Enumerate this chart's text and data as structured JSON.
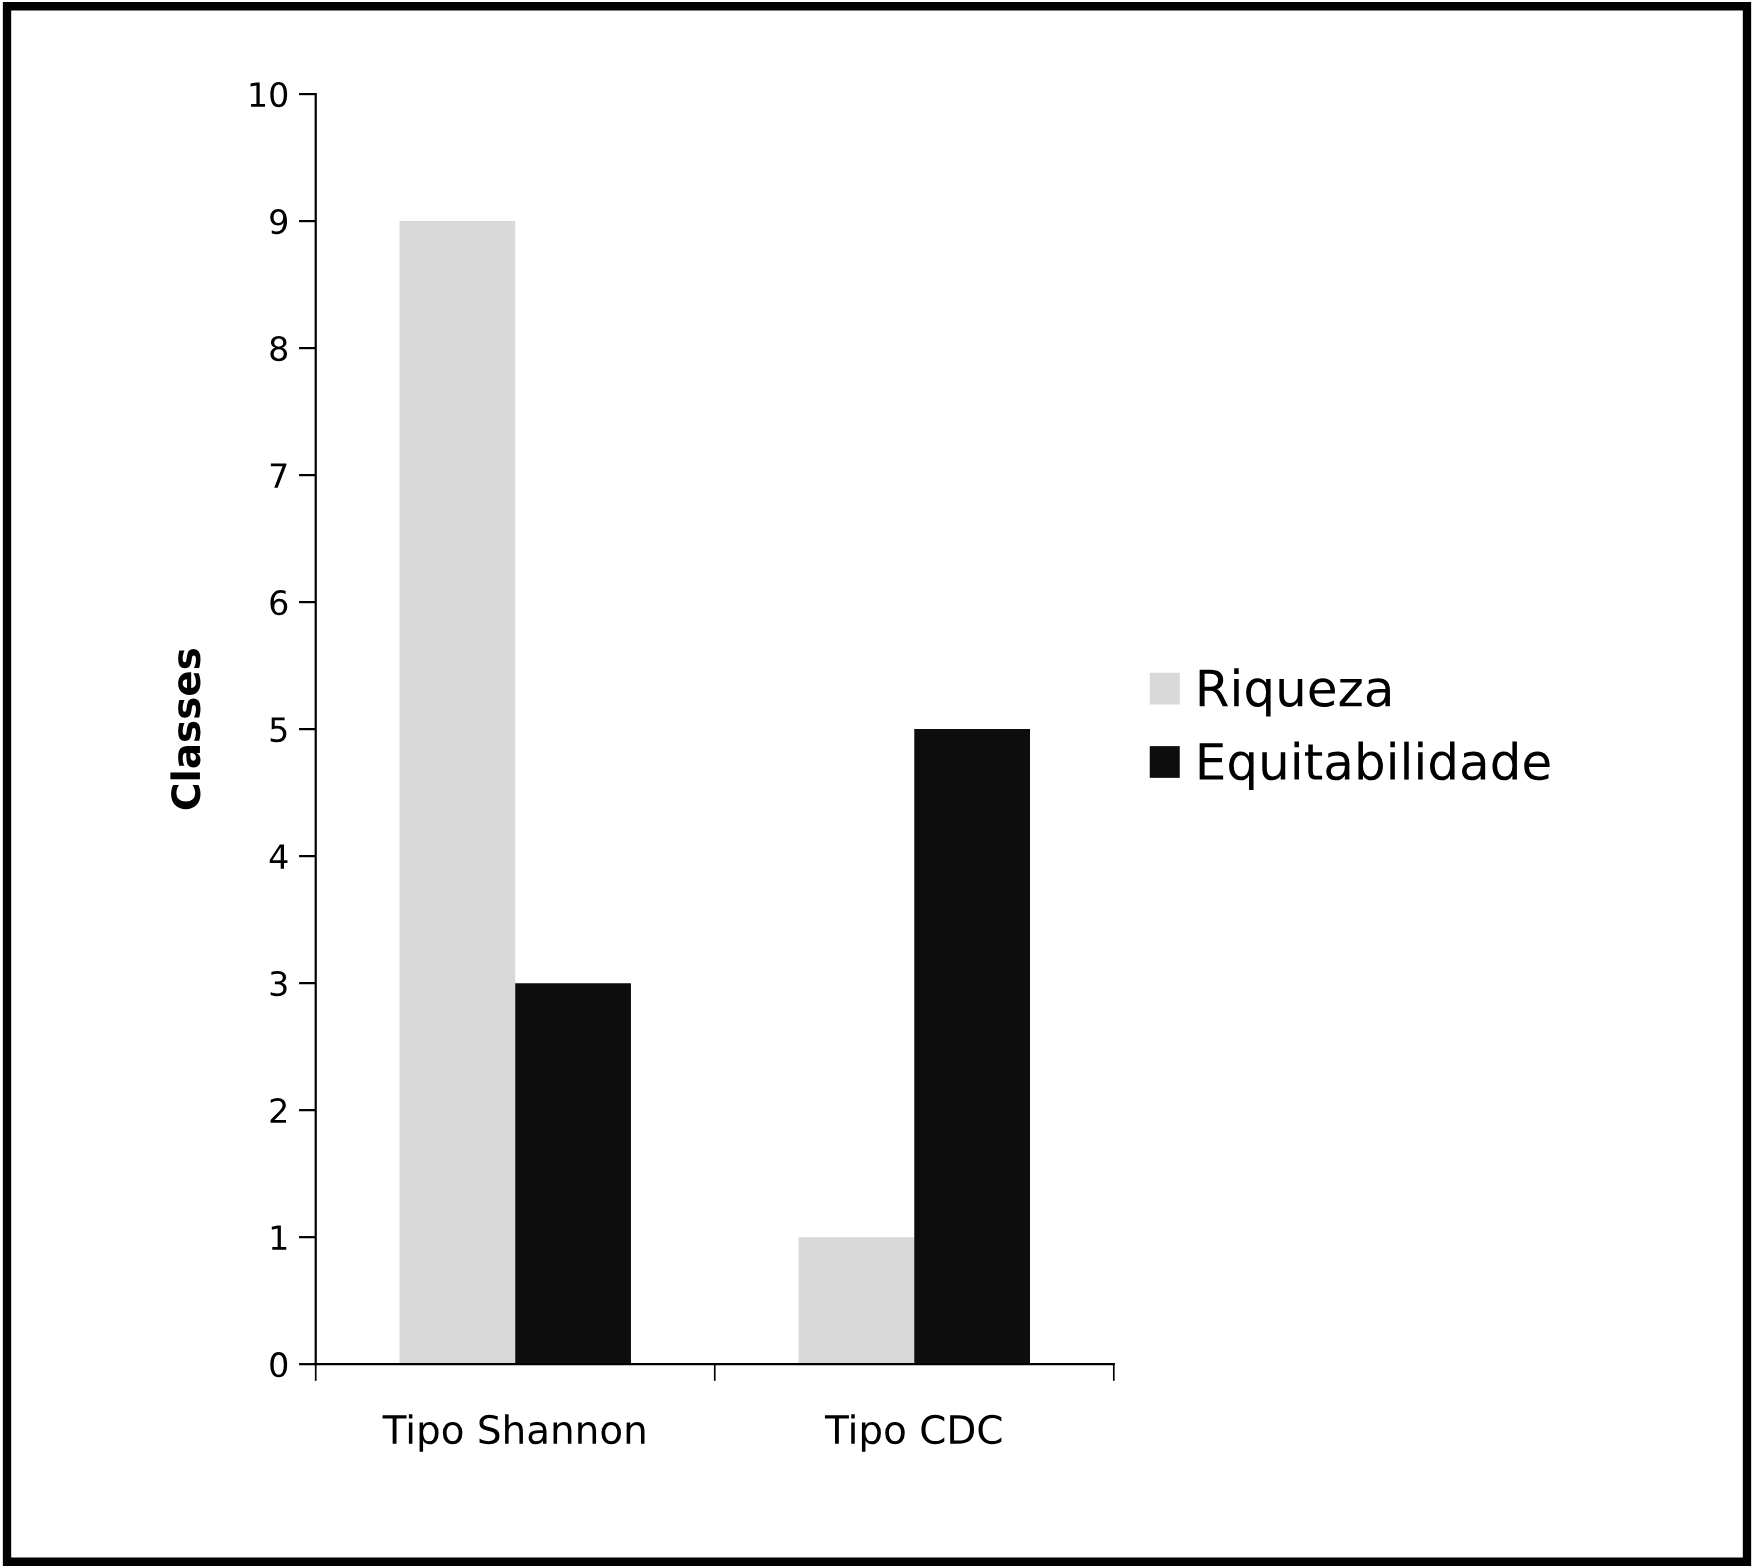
{
  "chart_data": {
    "type": "bar",
    "ylabel": "Classes",
    "categories": [
      "Tipo Shannon",
      "Tipo CDC"
    ],
    "series": [
      {
        "name": "Riqueza",
        "color": "#d9d9d9",
        "values": [
          9,
          1
        ]
      },
      {
        "name": "Equitabilidade",
        "color": "#0d0d0d",
        "values": [
          3,
          5
        ]
      }
    ],
    "ylim": [
      0,
      10
    ],
    "yticks": [
      0,
      1,
      2,
      3,
      4,
      5,
      6,
      7,
      8,
      9,
      10
    ],
    "grid": false,
    "legend": "right"
  }
}
